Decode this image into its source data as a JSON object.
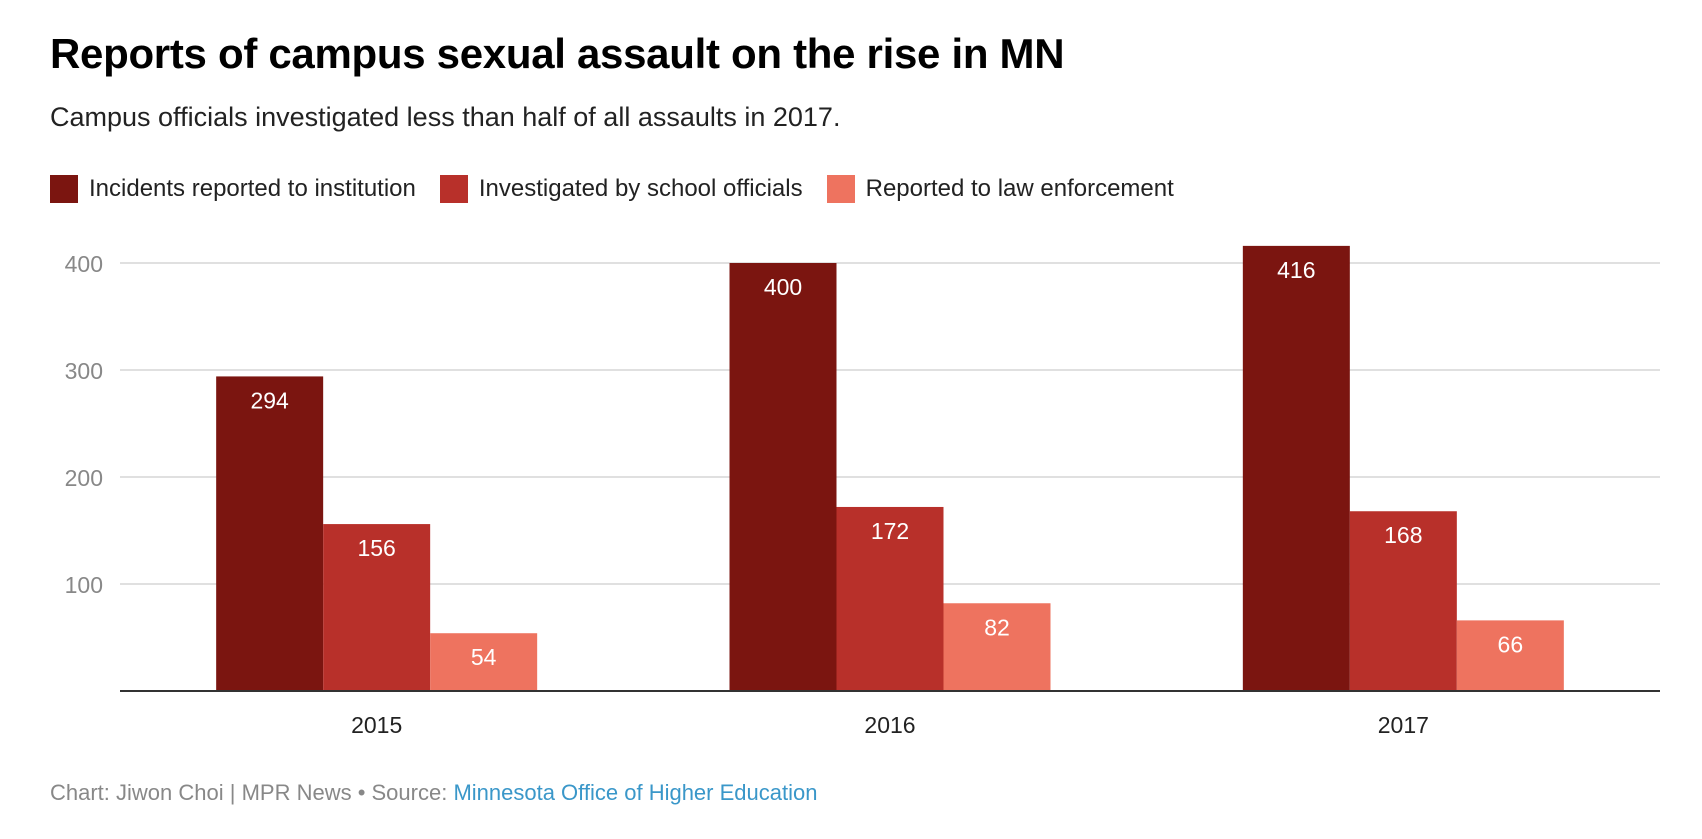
{
  "chart_data": {
    "type": "bar",
    "title": "Reports of campus sexual assault on the rise in MN",
    "subtitle": "Campus officials investigated less than half of all assaults in 2017.",
    "categories": [
      "2015",
      "2016",
      "2017"
    ],
    "series": [
      {
        "name": "Incidents reported to institution",
        "color": "#7b1510",
        "values": [
          294,
          400,
          416
        ]
      },
      {
        "name": "Investigated by school officials",
        "color": "#b8302a",
        "values": [
          156,
          172,
          168
        ]
      },
      {
        "name": "Reported to law enforcement",
        "color": "#ee735f",
        "values": [
          54,
          82,
          66
        ]
      }
    ],
    "yticks": [
      100,
      200,
      300,
      400
    ],
    "ylim": [
      0,
      420
    ],
    "xlabel": "",
    "ylabel": "",
    "grid": true,
    "legend": "top-left",
    "data_labels": true
  },
  "footer": {
    "credit": "Chart: Jiwon Choi | MPR News • Source: ",
    "source_link": "Minnesota Office of Higher Education"
  }
}
